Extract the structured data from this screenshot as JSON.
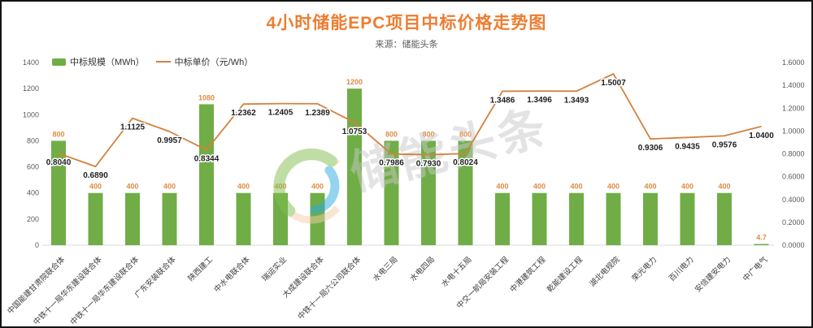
{
  "title": "4小时储能EPC项目中标价格走势图",
  "source": "来源：储能头条",
  "legend": {
    "bar_label": "中标规模（MWh）",
    "line_label": "中标单价（元/Wh）"
  },
  "watermark": "储能头条",
  "colors": {
    "title_orange": "#ED7D31",
    "bar_green": "#70AD47",
    "bar_label_orange": "#DE8C45",
    "line_orange": "#D2823F",
    "axis_text": "#595959",
    "line_label_text": "#1f1f1f",
    "x_label_text": "#3d3d3d",
    "baseline": "#d9d9d9",
    "watermark_gray": "#c9c9c9",
    "logo_green": "#7FBF4D",
    "logo_blue": "#29ABE2",
    "logo_peach": "#F3CDA9"
  },
  "chart_data": {
    "type": "bar",
    "combo": "bar+line",
    "title": "4小时储能EPC项目中标价格走势图",
    "subtitle": "来源：储能头条",
    "legend_position": "top-left",
    "grid": false,
    "categories": [
      "中国能建甘肃院联合体",
      "中铁十一局华东建设联合体",
      "中铁十一局华东建设联合体",
      "广东安装联合体",
      "陕西建工",
      "中水电联合体",
      "瑞运实业",
      "大成建设联合体",
      "中铁十一局六公司联合体",
      "水电三局",
      "水电四局",
      "水电十五局",
      "中交一航局安装工程",
      "中港建筑工程",
      "乾能建设工程",
      "湖北电规院",
      "荣光电力",
      "百川电力",
      "安信建安电力",
      "中广电气"
    ],
    "series": [
      {
        "name": "中标规模（MWh）",
        "type": "bar",
        "axis": "left",
        "values": [
          800,
          400,
          400,
          400,
          1080,
          400,
          400,
          400,
          1200,
          800,
          800,
          800,
          400,
          400,
          400,
          400,
          400,
          400,
          400,
          4.7
        ],
        "labels": [
          "800",
          "400",
          "400",
          "400",
          "1080",
          "400",
          "400",
          "400",
          "1200",
          "800",
          "800",
          "800",
          "400",
          "400",
          "400",
          "400",
          "400",
          "400",
          "400",
          "4.7"
        ]
      },
      {
        "name": "中标单价（元/Wh）",
        "type": "line",
        "axis": "right",
        "values": [
          0.804,
          0.689,
          1.1125,
          0.9957,
          0.8344,
          1.2362,
          1.2405,
          1.2389,
          1.0753,
          0.7986,
          0.793,
          0.8024,
          1.3486,
          1.3496,
          1.3493,
          1.5007,
          0.9306,
          0.9435,
          0.9576,
          1.04
        ],
        "labels": [
          "0.8040",
          "0.6890",
          "1.1125",
          "0.9957",
          "0.8344",
          "1.2362",
          "1.2405",
          "1.2389",
          "1.0753",
          "0.7986",
          "0.7930",
          "0.8024",
          "1.3486",
          "1.3496",
          "1.3493",
          "1.5007",
          "0.9306",
          "0.9435",
          "0.9576",
          "1.0400"
        ]
      }
    ],
    "left_axis": {
      "label": "中标规模（MWh）",
      "min": 0,
      "max": 1400,
      "step": 200,
      "ticks": [
        "0",
        "200",
        "400",
        "600",
        "800",
        "1000",
        "1200",
        "1400"
      ]
    },
    "right_axis": {
      "label": "中标单价（元/Wh）",
      "min": 0,
      "max": 1.6,
      "step": 0.2,
      "ticks": [
        "0.0000",
        "0.2000",
        "0.4000",
        "0.6000",
        "0.8000",
        "1.0000",
        "1.2000",
        "1.4000",
        "1.6000"
      ]
    }
  }
}
